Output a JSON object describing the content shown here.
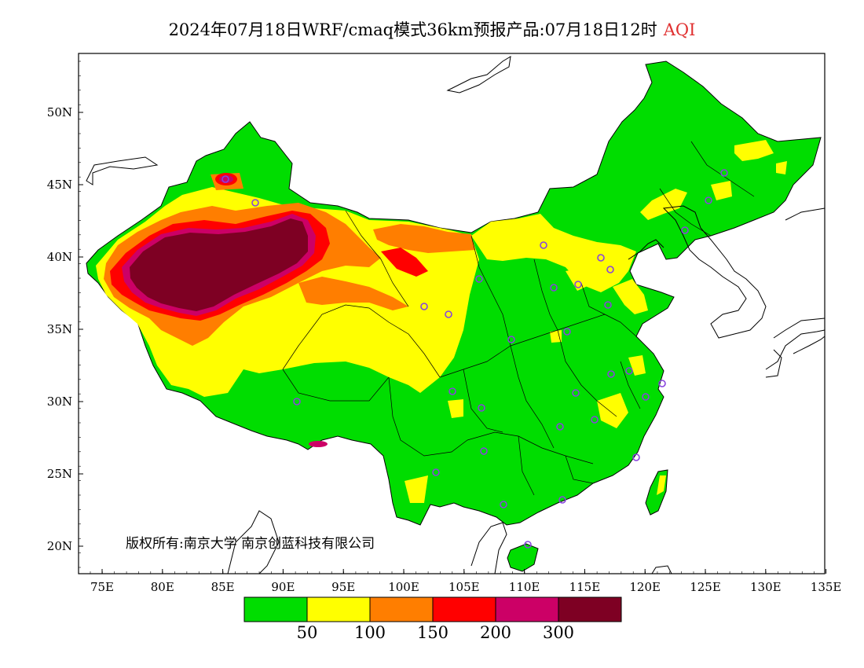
{
  "header": {
    "title": "2024年07月18日WRF/cmaq模式36km预报产品:07月18日12时",
    "variable": "AQI"
  },
  "copyright": "版权所有:南京大学 南京创蓝科技有限公司",
  "axes": {
    "lon_ticks": [
      "75E",
      "80E",
      "85E",
      "90E",
      "95E",
      "100E",
      "105E",
      "110E",
      "115E",
      "120E",
      "125E",
      "130E",
      "135E"
    ],
    "lat_ticks": [
      "50N",
      "45N",
      "40N",
      "35N",
      "30N",
      "25N",
      "20N"
    ]
  },
  "colors": {
    "green": "#00dd00",
    "yellow": "#ffff00",
    "orange": "#ff7e00",
    "red": "#ff0000",
    "magenta": "#cc0066",
    "maroon": "#7e0023",
    "station": "#8844dd"
  },
  "legend": {
    "colors": [
      "#00dd00",
      "#ffff00",
      "#ff7e00",
      "#ff0000",
      "#cc0066",
      "#7e0023"
    ],
    "labels": [
      "50",
      "100",
      "150",
      "200",
      "300"
    ]
  }
}
